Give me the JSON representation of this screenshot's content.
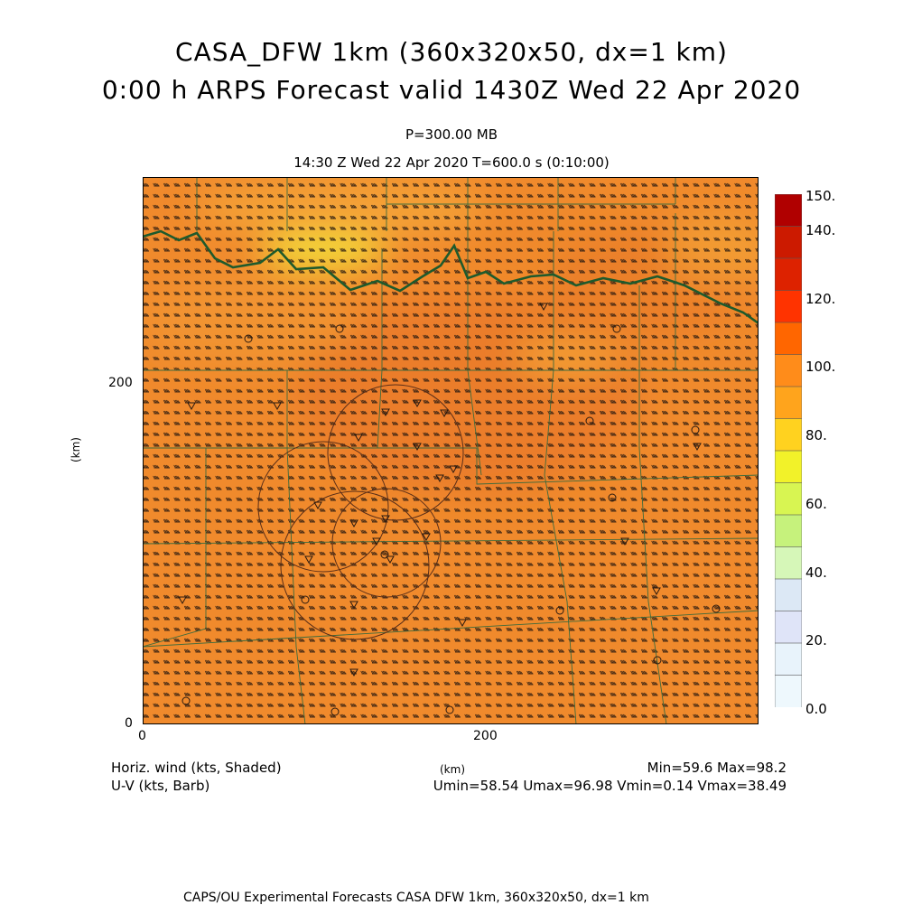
{
  "title": {
    "line1": "CASA_DFW 1km (360x320x50, dx=1 km)",
    "line2": "0:00 h ARPS Forecast valid 1430Z Wed 22 Apr 2020"
  },
  "subtitle": {
    "pressure": "P=300.00 MB",
    "time": "14:30 Z Wed 22 Apr 2020    T=600.0 s (0:10:00)"
  },
  "axes": {
    "x_unit": "(km)",
    "y_unit": "(km)",
    "x_ticks": [
      "0",
      "200"
    ],
    "y_ticks": [
      "0",
      "200"
    ]
  },
  "colorbar": {
    "labels": [
      "150.",
      "140.",
      "120.",
      "100.",
      "80.",
      "60.",
      "40.",
      "20.",
      "0.0"
    ],
    "colors": [
      "#b00000",
      "#cc1a00",
      "#dd2200",
      "#ff3300",
      "#ff6600",
      "#ff8c1a",
      "#ffa41c",
      "#ffd21f",
      "#f2f229",
      "#d8f552",
      "#c6f27c",
      "#d6f7b8",
      "#dce8f5",
      "#dfe4f8",
      "#e8f3fb",
      "#eef8fd"
    ]
  },
  "legend": {
    "left1": "Horiz. wind (kts, Shaded)",
    "left2": "U-V (kts, Barb)",
    "center": "(km)",
    "right1": "Min=59.6 Max=98.2",
    "right2": "Umin=58.54 Umax=96.98 Vmin=0.14 Vmax=38.49"
  },
  "footer": "CAPS/OU Experimental Forecasts  CASA DFW 1km, 360x320x50, dx=1 km",
  "field_colors": {
    "base": "#f08a2c",
    "warm": "#e87826",
    "light": "#f5a838",
    "bright": "#f2e03a",
    "boundary": "#1e5a2c",
    "county": "#3d6b3d"
  }
}
